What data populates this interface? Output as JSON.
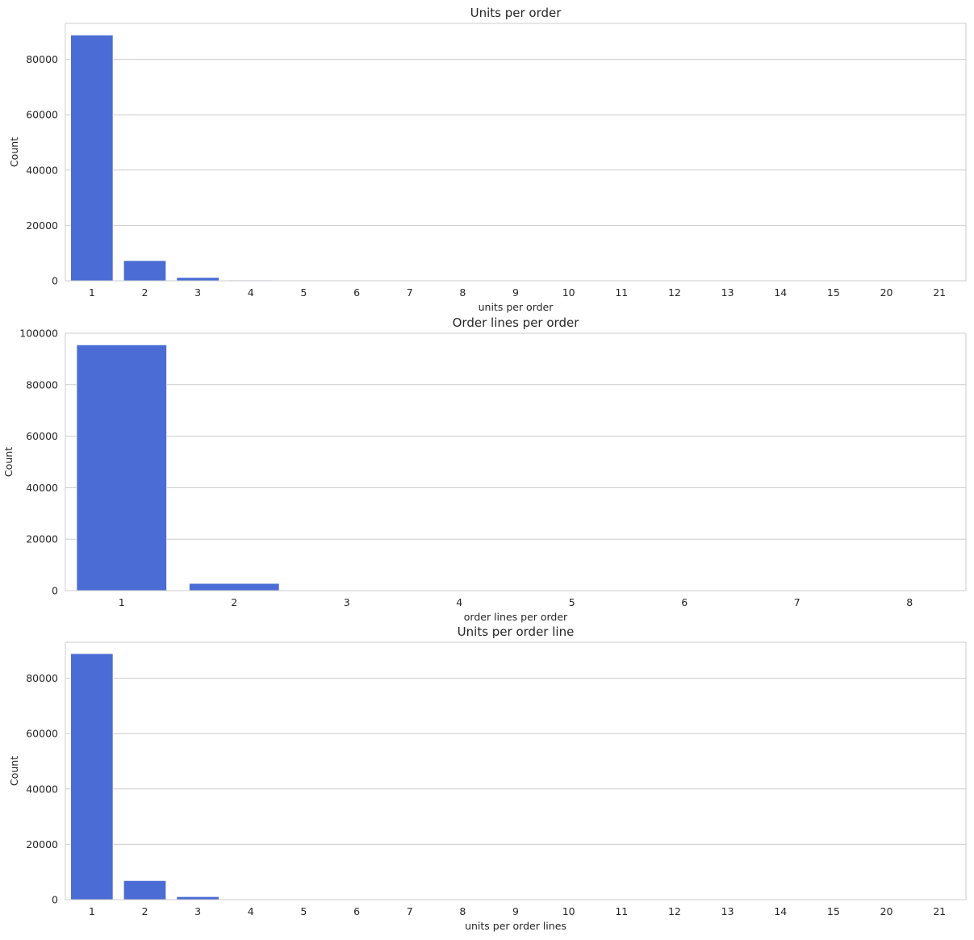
{
  "colors": {
    "bar": "#4A6CD4",
    "grid": "#cccccc",
    "text": "#262626",
    "background": "#ffffff"
  },
  "chart_data": [
    {
      "type": "bar",
      "title": "Units per order",
      "xlabel": "units per order",
      "ylabel": "Count",
      "categories": [
        "1",
        "2",
        "3",
        "4",
        "5",
        "6",
        "7",
        "8",
        "9",
        "10",
        "11",
        "12",
        "13",
        "14",
        "15",
        "20",
        "21"
      ],
      "values": [
        88800,
        7300,
        1200,
        280,
        90,
        40,
        20,
        12,
        8,
        6,
        4,
        3,
        2,
        2,
        1,
        1,
        1
      ],
      "ylim": [
        0,
        93000
      ],
      "yticks": [
        0,
        20000,
        40000,
        60000,
        80000
      ],
      "grid": true
    },
    {
      "type": "bar",
      "title": "Order lines per order",
      "xlabel": "order lines per order",
      "ylabel": "Count",
      "categories": [
        "1",
        "2",
        "3",
        "4",
        "5",
        "6",
        "7",
        "8"
      ],
      "values": [
        95500,
        2800,
        150,
        40,
        10,
        5,
        2,
        1
      ],
      "ylim": [
        0,
        100000
      ],
      "yticks": [
        0,
        20000,
        40000,
        60000,
        80000,
        100000
      ],
      "grid": true
    },
    {
      "type": "bar",
      "title": "Units per order line",
      "xlabel": "units per order lines",
      "ylabel": "Count",
      "categories": [
        "1",
        "2",
        "3",
        "4",
        "5",
        "6",
        "7",
        "8",
        "9",
        "10",
        "11",
        "12",
        "13",
        "14",
        "15",
        "20",
        "21"
      ],
      "values": [
        88900,
        6900,
        1100,
        250,
        80,
        35,
        18,
        10,
        7,
        5,
        4,
        3,
        2,
        2,
        1,
        1,
        1
      ],
      "ylim": [
        0,
        93000
      ],
      "yticks": [
        0,
        20000,
        40000,
        60000,
        80000
      ],
      "grid": true
    }
  ]
}
